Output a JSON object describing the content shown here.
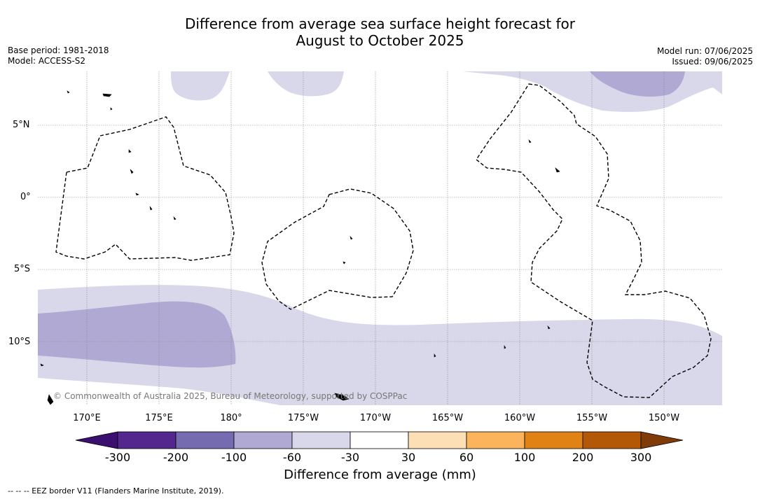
{
  "title_line1": "Difference from average sea surface height forecast for",
  "title_line2": "August to October 2025",
  "base_period": "Base period: 1981-2018",
  "model": "Model: ACCESS-S2",
  "model_run": "Model run: 07/06/2025",
  "issued": "Issued: 09/06/2025",
  "lat_labels": [
    "5°N",
    "0°",
    "5°S",
    "10°S"
  ],
  "lon_labels": [
    "170°E",
    "175°E",
    "180°",
    "175°W",
    "170°W",
    "165°W",
    "160°W",
    "155°W",
    "150°W"
  ],
  "copyright": "© Commonwealth of Australia 2025, Bureau of Meteorology, supported by COSPPac",
  "colorbar": {
    "ticks": [
      "-300",
      "-200",
      "-100",
      "-60",
      "-30",
      "30",
      "60",
      "100",
      "200",
      "300"
    ],
    "colors": [
      "#3b0f6f",
      "#54278f",
      "#756bb1",
      "#b0a9d3",
      "#d8d8ea",
      "#ffffff",
      "#fddfb5",
      "#fbb45c",
      "#e08214",
      "#b35806",
      "#7f3b08"
    ],
    "label": "Difference from average (mm)"
  },
  "footer": "--  --  -- EEZ border V11 (Flanders Marine Institute, 2019)."
}
